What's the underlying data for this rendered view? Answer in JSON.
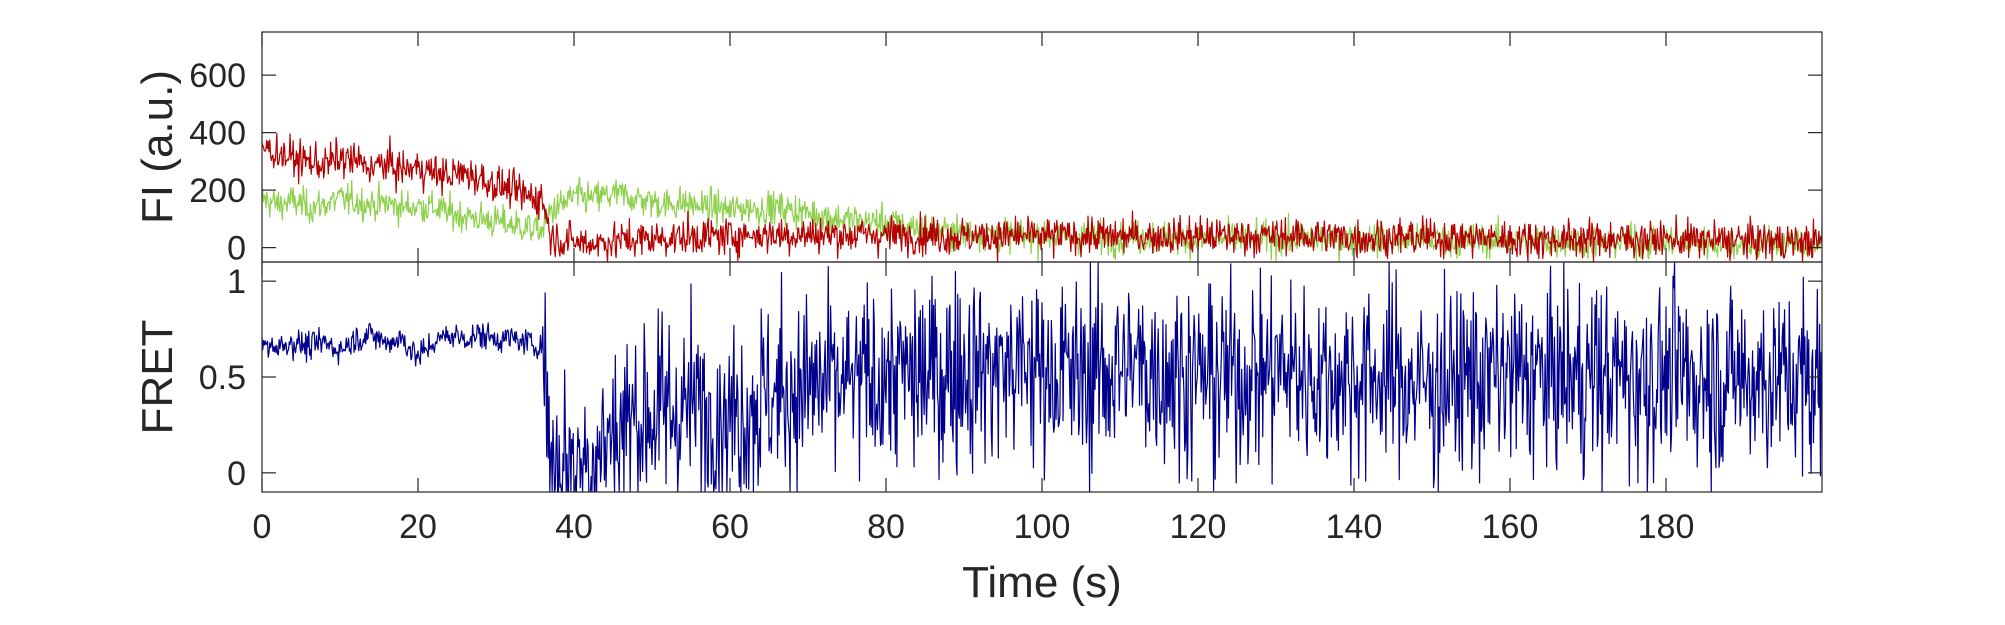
{
  "chart_data": [
    {
      "type": "line",
      "panel": "top",
      "ylabel": "FI (a.u.)",
      "xlabel": "",
      "xlim": [
        0,
        200
      ],
      "ylim": [
        -50,
        750
      ],
      "yticks": [
        0,
        200,
        400,
        600
      ],
      "show_xtick_labels": false,
      "colors": {
        "acceptor": "#b40000",
        "donor": "#8fd14f"
      },
      "series": [
        {
          "color_key": "donor",
          "x": [
            0,
            2,
            4,
            6,
            8,
            10,
            12,
            14,
            16,
            18,
            20,
            22,
            24,
            26,
            28,
            30,
            32,
            34,
            36,
            37,
            38,
            40,
            42,
            44,
            46,
            48,
            50,
            52,
            54,
            56,
            58,
            60,
            62,
            64,
            66,
            68,
            70,
            72,
            74,
            76,
            78,
            80,
            82,
            84,
            86,
            88,
            90,
            95,
            100,
            105,
            110,
            115,
            120,
            125,
            130,
            135,
            140,
            145,
            150,
            155,
            160,
            165,
            170,
            175,
            180,
            185,
            190,
            195,
            200
          ],
          "values": [
            170,
            150,
            160,
            140,
            150,
            170,
            160,
            150,
            155,
            140,
            145,
            140,
            120,
            110,
            100,
            90,
            80,
            70,
            60,
            130,
            140,
            180,
            170,
            180,
            185,
            170,
            160,
            150,
            155,
            145,
            140,
            130,
            140,
            135,
            140,
            130,
            120,
            110,
            100,
            95,
            90,
            85,
            80,
            70,
            60,
            55,
            50,
            45,
            40,
            40,
            35,
            35,
            30,
            30,
            30,
            30,
            30,
            25,
            25,
            25,
            25,
            25,
            20,
            20,
            20,
            20,
            15,
            15,
            15
          ]
        },
        {
          "color_key": "acceptor",
          "x": [
            0,
            2,
            4,
            6,
            8,
            10,
            12,
            14,
            16,
            18,
            20,
            22,
            24,
            26,
            28,
            30,
            32,
            34,
            36,
            37,
            38,
            40,
            42,
            44,
            46,
            48,
            50,
            52,
            54,
            56,
            58,
            60,
            62,
            64,
            66,
            68,
            70,
            72,
            74,
            76,
            78,
            80,
            82,
            84,
            86,
            88,
            90,
            95,
            100,
            105,
            110,
            115,
            120,
            125,
            130,
            135,
            140,
            145,
            150,
            155,
            160,
            165,
            170,
            175,
            180,
            185,
            190,
            195,
            200
          ],
          "values": [
            350,
            330,
            310,
            300,
            290,
            310,
            300,
            280,
            290,
            270,
            280,
            260,
            250,
            260,
            240,
            220,
            200,
            180,
            170,
            40,
            30,
            20,
            15,
            20,
            25,
            30,
            30,
            35,
            35,
            40,
            40,
            40,
            45,
            45,
            45,
            45,
            45,
            45,
            45,
            45,
            45,
            45,
            45,
            45,
            45,
            40,
            40,
            40,
            40,
            40,
            40,
            40,
            40,
            40,
            40,
            40,
            35,
            35,
            35,
            35,
            30,
            30,
            30,
            30,
            30,
            25,
            25,
            20,
            20
          ]
        }
      ]
    },
    {
      "type": "line",
      "panel": "bottom",
      "ylabel": "FRET",
      "xlabel": "Time (s)",
      "xlim": [
        0,
        200
      ],
      "ylim": [
        -0.1,
        1.1
      ],
      "yticks": [
        0,
        0.5,
        1
      ],
      "ytick_labels": [
        "0",
        "0.5",
        "1"
      ],
      "xticks": [
        0,
        20,
        40,
        60,
        80,
        100,
        120,
        140,
        160,
        180
      ],
      "xtick_labels": [
        "0",
        "20",
        "40",
        "60",
        "80",
        "100",
        "120",
        "140",
        "160",
        "180"
      ],
      "colors": {
        "fret": "#00008b"
      },
      "series": [
        {
          "color_key": "fret",
          "x": [
            0,
            2,
            4,
            6,
            8,
            10,
            12,
            14,
            16,
            18,
            20,
            22,
            24,
            26,
            28,
            30,
            32,
            34,
            36,
            37,
            38,
            40,
            42,
            44,
            46,
            48,
            50,
            55,
            60,
            65,
            70,
            75,
            80,
            85,
            90,
            95,
            100,
            105,
            110,
            115,
            120,
            125,
            130,
            135,
            140,
            145,
            150,
            155,
            160,
            165,
            170,
            175,
            180,
            185,
            190,
            195,
            200
          ],
          "values": [
            0.67,
            0.66,
            0.68,
            0.66,
            0.68,
            0.64,
            0.7,
            0.72,
            0.68,
            0.7,
            0.6,
            0.68,
            0.72,
            0.7,
            0.72,
            0.7,
            0.7,
            0.68,
            0.66,
            0.1,
            0.05,
            0.05,
            0.08,
            0.15,
            0.25,
            0.3,
            0.3,
            0.35,
            0.3,
            0.4,
            0.45,
            0.45,
            0.5,
            0.5,
            0.55,
            0.55,
            0.55,
            0.5,
            0.55,
            0.55,
            0.5,
            0.5,
            0.55,
            0.5,
            0.5,
            0.5,
            0.45,
            0.5,
            0.5,
            0.5,
            0.5,
            0.5,
            0.5,
            0.5,
            0.5,
            0.5,
            0.45
          ]
        }
      ]
    }
  ]
}
